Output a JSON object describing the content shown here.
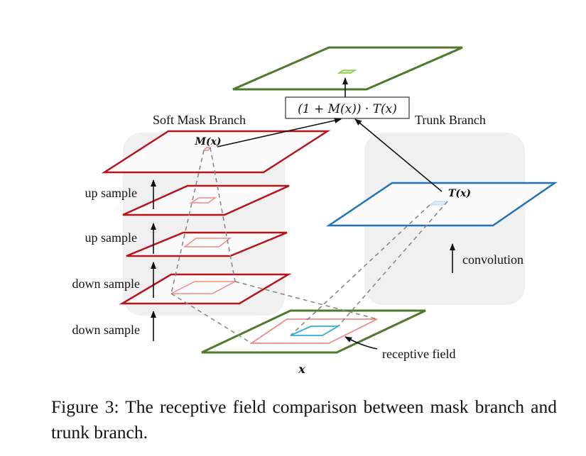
{
  "diagram": {
    "soft_mask_branch_label": "Soft Mask Branch",
    "trunk_branch_label": "Trunk Branch",
    "formula": "(1 + M(x)) · T(x)",
    "mask_output_label": "M(x)",
    "trunk_output_label": "T(x)",
    "input_label": "x",
    "mask_steps": [
      "up sample",
      "up sample",
      "down sample",
      "down sample"
    ],
    "trunk_step": "convolution",
    "receptive_field_label": "receptive field",
    "colors": {
      "mask": "#b8141c",
      "mask_light": "#f28a8a",
      "trunk": "#1f73b8",
      "trunk_light": "#2fb0d8",
      "io": "#4f7a2d",
      "io_light": "#8cc84b",
      "panel": "#f0f0f0"
    }
  },
  "caption": "Figure 3: The receptive field comparison between mask branch and trunk branch."
}
